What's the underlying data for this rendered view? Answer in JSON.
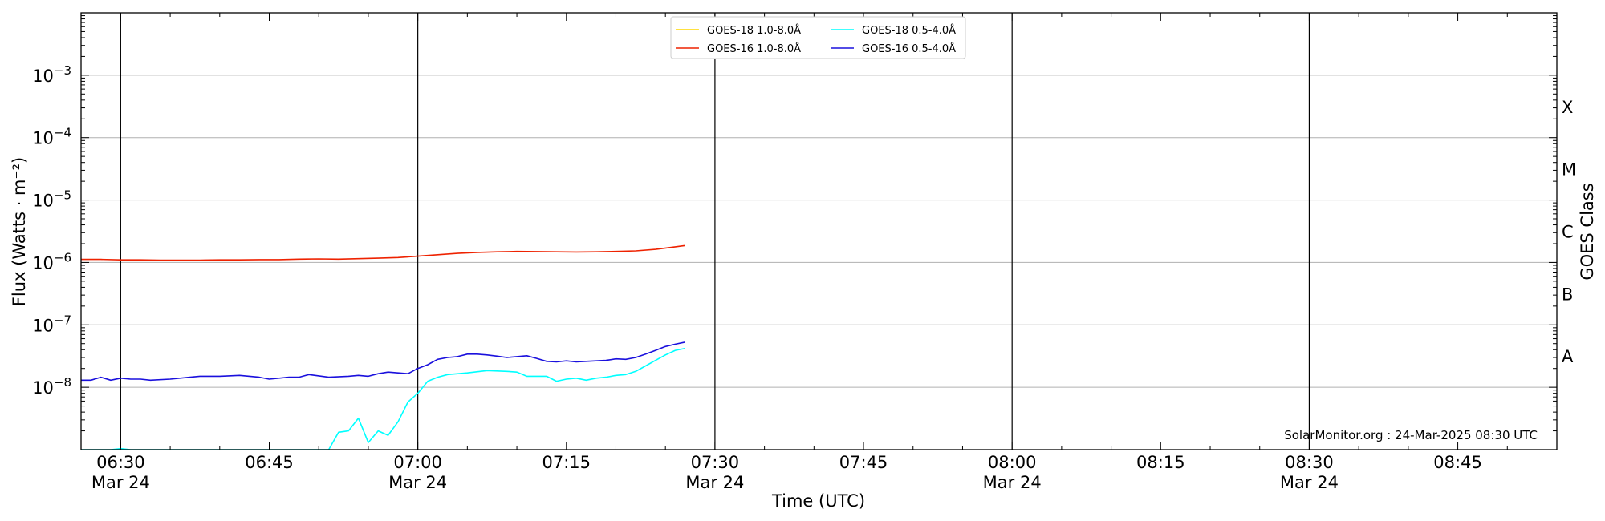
{
  "chart_data": {
    "type": "line",
    "xlabel": "Time (UTC)",
    "ylabel": "Flux (Watts · m⁻²)",
    "ylabel_right": "GOES Class",
    "yscale": "log",
    "x_range": [
      "06:26",
      "08:55"
    ],
    "ylim": [
      1e-09,
      0.01
    ],
    "y_ticks": [
      {
        "value": 1e-08,
        "base": "10",
        "exp": "−8"
      },
      {
        "value": 1e-07,
        "base": "10",
        "exp": "−7"
      },
      {
        "value": 1e-06,
        "base": "10",
        "exp": "−6"
      },
      {
        "value": 1e-05,
        "base": "10",
        "exp": "−5"
      },
      {
        "value": 0.0001,
        "base": "10",
        "exp": "−4"
      },
      {
        "value": 0.001,
        "base": "10",
        "exp": "−3"
      }
    ],
    "x_ticks": [
      {
        "time": "06:30",
        "label": "06:30",
        "date": "Mar 24"
      },
      {
        "time": "06:45",
        "label": "06:45",
        "date": ""
      },
      {
        "time": "07:00",
        "label": "07:00",
        "date": "Mar 24"
      },
      {
        "time": "07:15",
        "label": "07:15",
        "date": ""
      },
      {
        "time": "07:30",
        "label": "07:30",
        "date": "Mar 24"
      },
      {
        "time": "07:45",
        "label": "07:45",
        "date": ""
      },
      {
        "time": "08:00",
        "label": "08:00",
        "date": "Mar 24"
      },
      {
        "time": "08:15",
        "label": "08:15",
        "date": ""
      },
      {
        "time": "08:30",
        "label": "08:30",
        "date": "Mar 24"
      },
      {
        "time": "08:45",
        "label": "08:45",
        "date": ""
      }
    ],
    "vlines": [
      "06:30",
      "07:00",
      "07:30",
      "08:00",
      "08:30"
    ],
    "goes_classes": [
      {
        "label": "A",
        "value": 3.16e-08
      },
      {
        "label": "B",
        "value": 3.16e-07
      },
      {
        "label": "C",
        "value": 3.16e-06
      },
      {
        "label": "M",
        "value": 3.16e-05
      },
      {
        "label": "X",
        "value": 0.000316
      }
    ],
    "grid": "horizontal",
    "legend_position": "top-center",
    "series": [
      {
        "name": "GOES-18 1.0-8.0Å",
        "color": "#ffd700",
        "points": []
      },
      {
        "name": "GOES-16 1.0-8.0Å",
        "color": "#ee2200",
        "points": [
          [
            "06:26",
            1.12e-06
          ],
          [
            "06:28",
            1.12e-06
          ],
          [
            "06:30",
            1.1e-06
          ],
          [
            "06:32",
            1.1e-06
          ],
          [
            "06:34",
            1.09e-06
          ],
          [
            "06:36",
            1.09e-06
          ],
          [
            "06:38",
            1.09e-06
          ],
          [
            "06:40",
            1.1e-06
          ],
          [
            "06:42",
            1.1e-06
          ],
          [
            "06:44",
            1.11e-06
          ],
          [
            "06:46",
            1.11e-06
          ],
          [
            "06:48",
            1.13e-06
          ],
          [
            "06:50",
            1.14e-06
          ],
          [
            "06:52",
            1.13e-06
          ],
          [
            "06:54",
            1.15e-06
          ],
          [
            "06:56",
            1.17e-06
          ],
          [
            "06:58",
            1.2e-06
          ],
          [
            "07:00",
            1.26e-06
          ],
          [
            "07:02",
            1.33e-06
          ],
          [
            "07:04",
            1.4e-06
          ],
          [
            "07:06",
            1.45e-06
          ],
          [
            "07:08",
            1.48e-06
          ],
          [
            "07:10",
            1.5e-06
          ],
          [
            "07:12",
            1.49e-06
          ],
          [
            "07:14",
            1.48e-06
          ],
          [
            "07:16",
            1.47e-06
          ],
          [
            "07:18",
            1.48e-06
          ],
          [
            "07:20",
            1.5e-06
          ],
          [
            "07:22",
            1.53e-06
          ],
          [
            "07:24",
            1.62e-06
          ],
          [
            "07:26",
            1.78e-06
          ],
          [
            "07:27",
            1.87e-06
          ]
        ]
      },
      {
        "name": "GOES-18 0.5-4.0Å",
        "color": "#00ffff",
        "points": [
          [
            "06:26",
            1e-09
          ],
          [
            "06:29",
            1e-09
          ],
          [
            "06:30",
            1.04e-09
          ],
          [
            "06:31",
            1e-09
          ],
          [
            "06:51",
            1e-09
          ],
          [
            "06:52",
            1.9e-09
          ],
          [
            "06:53",
            2e-09
          ],
          [
            "06:54",
            3.2e-09
          ],
          [
            "06:55",
            1.3e-09
          ],
          [
            "06:56",
            2e-09
          ],
          [
            "06:57",
            1.7e-09
          ],
          [
            "06:58",
            2.8e-09
          ],
          [
            "06:59",
            5.8e-09
          ],
          [
            "07:00",
            8e-09
          ],
          [
            "07:01",
            1.25e-08
          ],
          [
            "07:02",
            1.45e-08
          ],
          [
            "07:03",
            1.6e-08
          ],
          [
            "07:05",
            1.7e-08
          ],
          [
            "07:07",
            1.85e-08
          ],
          [
            "07:09",
            1.8e-08
          ],
          [
            "07:10",
            1.75e-08
          ],
          [
            "07:11",
            1.5e-08
          ],
          [
            "07:13",
            1.5e-08
          ],
          [
            "07:14",
            1.25e-08
          ],
          [
            "07:15",
            1.35e-08
          ],
          [
            "07:16",
            1.4e-08
          ],
          [
            "07:17",
            1.3e-08
          ],
          [
            "07:18",
            1.4e-08
          ],
          [
            "07:19",
            1.45e-08
          ],
          [
            "07:20",
            1.55e-08
          ],
          [
            "07:21",
            1.6e-08
          ],
          [
            "07:22",
            1.8e-08
          ],
          [
            "07:23",
            2.2e-08
          ],
          [
            "07:24",
            2.7e-08
          ],
          [
            "07:25",
            3.3e-08
          ],
          [
            "07:26",
            3.9e-08
          ],
          [
            "07:27",
            4.2e-08
          ]
        ]
      },
      {
        "name": "GOES-16 0.5-4.0Å",
        "color": "#1a10dd",
        "points": [
          [
            "06:26",
            1.3e-08
          ],
          [
            "06:27",
            1.3e-08
          ],
          [
            "06:28",
            1.45e-08
          ],
          [
            "06:29",
            1.3e-08
          ],
          [
            "06:30",
            1.4e-08
          ],
          [
            "06:31",
            1.35e-08
          ],
          [
            "06:32",
            1.35e-08
          ],
          [
            "06:33",
            1.3e-08
          ],
          [
            "06:35",
            1.35e-08
          ],
          [
            "06:37",
            1.45e-08
          ],
          [
            "06:38",
            1.5e-08
          ],
          [
            "06:40",
            1.5e-08
          ],
          [
            "06:42",
            1.55e-08
          ],
          [
            "06:44",
            1.45e-08
          ],
          [
            "06:45",
            1.35e-08
          ],
          [
            "06:47",
            1.45e-08
          ],
          [
            "06:48",
            1.45e-08
          ],
          [
            "06:49",
            1.6e-08
          ],
          [
            "06:51",
            1.45e-08
          ],
          [
            "06:53",
            1.5e-08
          ],
          [
            "06:54",
            1.55e-08
          ],
          [
            "06:55",
            1.5e-08
          ],
          [
            "06:56",
            1.65e-08
          ],
          [
            "06:57",
            1.75e-08
          ],
          [
            "06:59",
            1.65e-08
          ],
          [
            "07:00",
            2e-08
          ],
          [
            "07:01",
            2.3e-08
          ],
          [
            "07:02",
            2.8e-08
          ],
          [
            "07:03",
            3e-08
          ],
          [
            "07:04",
            3.1e-08
          ],
          [
            "07:05",
            3.4e-08
          ],
          [
            "07:06",
            3.4e-08
          ],
          [
            "07:07",
            3.3e-08
          ],
          [
            "07:08",
            3.15e-08
          ],
          [
            "07:09",
            3e-08
          ],
          [
            "07:10",
            3.1e-08
          ],
          [
            "07:11",
            3.2e-08
          ],
          [
            "07:12",
            2.9e-08
          ],
          [
            "07:13",
            2.6e-08
          ],
          [
            "07:14",
            2.55e-08
          ],
          [
            "07:15",
            2.65e-08
          ],
          [
            "07:16",
            2.55e-08
          ],
          [
            "07:17",
            2.6e-08
          ],
          [
            "07:18",
            2.65e-08
          ],
          [
            "07:19",
            2.7e-08
          ],
          [
            "07:20",
            2.85e-08
          ],
          [
            "07:21",
            2.8e-08
          ],
          [
            "07:22",
            3e-08
          ],
          [
            "07:23",
            3.4e-08
          ],
          [
            "07:24",
            3.9e-08
          ],
          [
            "07:25",
            4.5e-08
          ],
          [
            "07:26",
            4.9e-08
          ],
          [
            "07:27",
            5.3e-08
          ]
        ]
      }
    ],
    "credit": "SolarMonitor.org : 24-Mar-2025 08:30 UTC"
  }
}
